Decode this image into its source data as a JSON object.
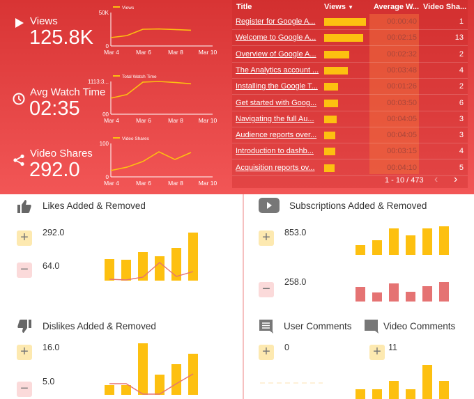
{
  "kpis": [
    {
      "label": "Views",
      "value": "125.8K",
      "icon": "play-icon"
    },
    {
      "label": "Avg Watch Time",
      "value": "02:35",
      "icon": "clock-icon"
    },
    {
      "label": "Video Shares",
      "value": "292.0",
      "icon": "share-icon"
    }
  ],
  "chart_data": [
    {
      "type": "line",
      "legend": "Views",
      "x_ticks": [
        "Mar 4",
        "Mar 6",
        "Mar 8",
        "Mar 10"
      ],
      "y_ticks": [
        "0",
        "50K"
      ],
      "x": [
        "Mar 4",
        "Mar 5",
        "Mar 6",
        "Mar 7",
        "Mar 8",
        "Mar 9"
      ],
      "values": [
        12500,
        15500,
        25000,
        25500,
        24500,
        23500
      ],
      "ylim": [
        0,
        50000
      ],
      "color": "#fdc010"
    },
    {
      "type": "line",
      "legend": "Total Watch Time",
      "x_ticks": [
        "Mar 4",
        "Mar 6",
        "Mar 8",
        "Mar 10"
      ],
      "y_ticks": [
        "00",
        "1113:3..."
      ],
      "x": [
        "Mar 4",
        "Mar 5",
        "Mar 6",
        "Mar 7",
        "Mar 8",
        "Mar 9"
      ],
      "values": [
        0.49,
        0.6,
        0.98,
        1.0,
        0.97,
        0.93
      ],
      "ylim": [
        0,
        1
      ],
      "color": "#fdc010"
    },
    {
      "type": "line",
      "legend": "Video Shares",
      "x_ticks": [
        "Mar 4",
        "Mar 6",
        "Mar 8",
        "Mar 10"
      ],
      "y_ticks": [
        "0",
        "100"
      ],
      "x": [
        "Mar 4",
        "Mar 5",
        "Mar 6",
        "Mar 7",
        "Mar 8",
        "Mar 9"
      ],
      "values": [
        19,
        29,
        46,
        75,
        52,
        73
      ],
      "ylim": [
        0,
        100
      ],
      "color": "#fdc010"
    }
  ],
  "table": {
    "headers": [
      "Title",
      "Views",
      "Average W...",
      "Video Sha..."
    ],
    "sort_icon": "sort-desc-icon",
    "rows": [
      {
        "title": "Register for Google A...",
        "views_bar": 1.0,
        "avg": "00:00:40",
        "shares": "1"
      },
      {
        "title": "Welcome to Google A...",
        "views_bar": 0.94,
        "avg": "00:02:15",
        "shares": "13"
      },
      {
        "title": "Overview of Google A...",
        "views_bar": 0.6,
        "avg": "00:02:32",
        "shares": "2"
      },
      {
        "title": "The Analytics account ...",
        "views_bar": 0.57,
        "avg": "00:03:48",
        "shares": "4"
      },
      {
        "title": "Installing the Google T...",
        "views_bar": 0.34,
        "avg": "00:01:26",
        "shares": "2"
      },
      {
        "title": "Get started with Goog...",
        "views_bar": 0.34,
        "avg": "00:03:50",
        "shares": "6"
      },
      {
        "title": "Navigating the full Au...",
        "views_bar": 0.3,
        "avg": "00:04:05",
        "shares": "3"
      },
      {
        "title": "Audience reports over...",
        "views_bar": 0.27,
        "avg": "00:04:05",
        "shares": "3"
      },
      {
        "title": "Introduction to dashb...",
        "views_bar": 0.26,
        "avg": "00:03:15",
        "shares": "4"
      },
      {
        "title": "Acquisition reports ov...",
        "views_bar": 0.25,
        "avg": "00:04:10",
        "shares": "5"
      }
    ],
    "pagination": "1 - 10 / 473"
  },
  "panels": {
    "likes": {
      "title": "Likes Added & Removed",
      "added": "292.0",
      "removed": "64.0",
      "bars": [
        31,
        30,
        41,
        35,
        47,
        69
      ],
      "line": [
        2,
        1,
        5,
        26,
        6,
        13
      ]
    },
    "subs": {
      "title": "Subscriptions Added & Removed",
      "added": "853.0",
      "removed": "258.0",
      "bars": [
        14,
        21,
        38,
        28,
        38,
        41
      ],
      "removed_bars": [
        21,
        13,
        26,
        14,
        22,
        28
      ]
    },
    "dislikes": {
      "title": "Dislikes Added & Removed",
      "added": "16.0",
      "removed": "5.0",
      "bars": [
        14,
        14,
        74,
        29,
        44,
        59
      ],
      "line": [
        16,
        16,
        1,
        1,
        16,
        30
      ]
    },
    "user_comments": {
      "title": "User Comments",
      "added": "0"
    },
    "video_comments": {
      "title": "Video Comments",
      "added": "11",
      "bars": [
        14,
        14,
        26,
        14,
        49,
        26
      ]
    }
  },
  "colors": {
    "accent": "#fdc010",
    "removed": "#e57373",
    "top_bg": "#e04040"
  }
}
